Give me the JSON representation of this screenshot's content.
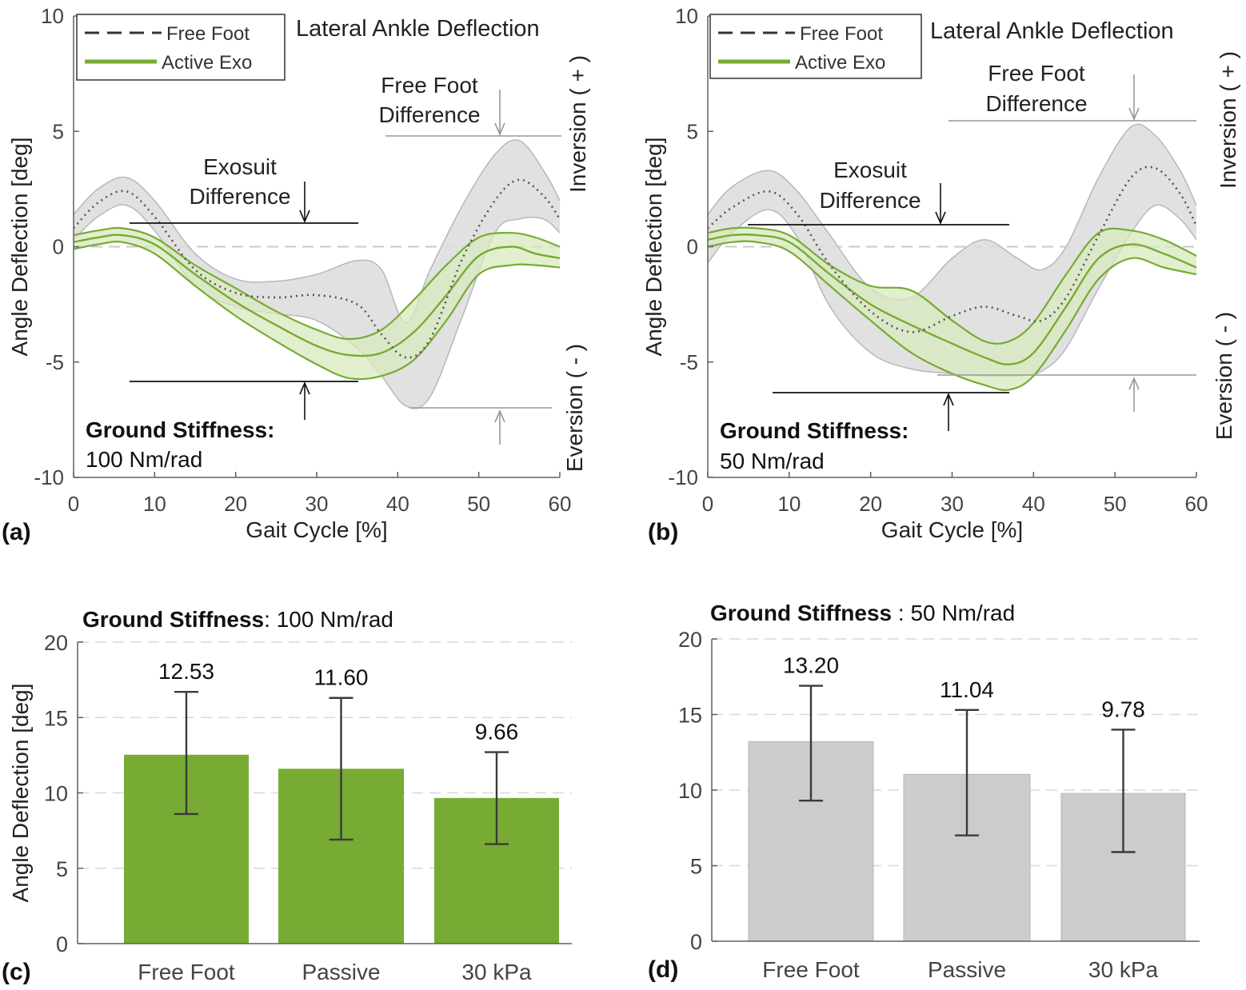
{
  "colors": {
    "exo": "#76ab34",
    "exo_band": "#d8e9bd",
    "free_band": "#dcdcdc",
    "free_band_edge": "#b8b8b8",
    "free_line": "#555555",
    "bar_green": "#77ab33",
    "bar_gray": "#cccccc",
    "axis": "#606060"
  },
  "chart_data": [
    {
      "panel_label": "(a)",
      "type": "line",
      "title": "Lateral Ankle Deflection",
      "xlabel": "Gait Cycle [%]",
      "ylabel": "Angle Deflection [deg]",
      "xlim": [
        0,
        60
      ],
      "ylim": [
        -10,
        10
      ],
      "xticks": [
        "0",
        "10",
        "20",
        "30",
        "40",
        "50",
        "60"
      ],
      "yticks": [
        "-10",
        "-5",
        "0",
        "5",
        "10"
      ],
      "legend": [
        "Free Foot",
        "Active Exo"
      ],
      "legend_position": "top-left",
      "annotations": {
        "exo_diff_l1": "Exosuit",
        "exo_diff_l2": "Difference",
        "free_diff_l1": "Free Foot",
        "free_diff_l2": "Difference",
        "inversion": "Inversion ( + )",
        "eversion": "Eversion ( - )",
        "stiffness_label": "Ground Stiffness:",
        "stiffness_value": "100 Nm/rad"
      },
      "series": [
        {
          "name": "Free Foot",
          "style": "dotted mean with gray band",
          "x": [
            0,
            3,
            6.5,
            10,
            15,
            20,
            25,
            30,
            35,
            38,
            41,
            44,
            48,
            52,
            55,
            58,
            60
          ],
          "mean": [
            0.8,
            1.9,
            2.4,
            1.3,
            -1.0,
            -2.0,
            -2.2,
            -2.1,
            -2.5,
            -3.8,
            -4.8,
            -4.0,
            -0.5,
            2.0,
            2.9,
            2.2,
            1.2
          ],
          "upper": [
            1.4,
            2.5,
            3.0,
            2.0,
            -0.3,
            -1.4,
            -1.5,
            -1.2,
            -0.6,
            -1.0,
            -3.3,
            -1.0,
            1.8,
            4.0,
            4.6,
            3.3,
            2.0
          ],
          "lower": [
            0.3,
            1.3,
            1.8,
            0.7,
            -1.7,
            -2.6,
            -2.9,
            -3.2,
            -4.4,
            -5.6,
            -6.9,
            -6.5,
            -3.0,
            0.6,
            1.2,
            1.2,
            0.6
          ]
        },
        {
          "name": "Active Exo",
          "style": "solid mean with green band",
          "x": [
            0,
            3,
            6,
            10,
            15,
            20,
            25,
            30,
            34,
            38,
            42,
            46,
            50,
            54,
            57,
            60
          ],
          "mean": [
            0.2,
            0.4,
            0.5,
            0.1,
            -1.2,
            -2.4,
            -3.4,
            -4.3,
            -4.7,
            -4.6,
            -3.7,
            -2.1,
            -0.4,
            0.0,
            -0.3,
            -0.5
          ],
          "upper": [
            0.5,
            0.7,
            0.8,
            0.4,
            -0.8,
            -1.8,
            -2.8,
            -3.6,
            -4.0,
            -3.6,
            -2.3,
            -0.8,
            0.4,
            0.6,
            0.4,
            0.0
          ],
          "lower": [
            -0.1,
            0.1,
            0.2,
            -0.3,
            -1.7,
            -3.0,
            -4.1,
            -5.1,
            -5.7,
            -5.6,
            -4.9,
            -3.2,
            -1.2,
            -0.8,
            -0.8,
            -0.9
          ]
        }
      ]
    },
    {
      "panel_label": "(b)",
      "type": "line",
      "title": "Lateral Ankle Deflection",
      "xlabel": "Gait Cycle [%]",
      "ylabel": "Angle Deflection [deg]",
      "xlim": [
        0,
        60
      ],
      "ylim": [
        -10,
        10
      ],
      "xticks": [
        "0",
        "10",
        "20",
        "30",
        "40",
        "50",
        "60"
      ],
      "yticks": [
        "-10",
        "-5",
        "0",
        "5",
        "10"
      ],
      "legend": [
        "Free Foot",
        "Active Exo"
      ],
      "legend_position": "top-left",
      "annotations": {
        "exo_diff_l1": "Exosuit",
        "exo_diff_l2": "Difference",
        "free_diff_l1": "Free Foot",
        "free_diff_l2": "Difference",
        "inversion": "Inversion ( + )",
        "eversion": "Eversion ( - )",
        "stiffness_label": "Ground Stiffness:",
        "stiffness_value": "50 Nm/rad"
      },
      "series": [
        {
          "name": "Free Foot",
          "style": "dotted mean with gray band",
          "x": [
            0,
            3,
            7.5,
            11,
            15,
            20,
            25,
            30,
            34,
            38,
            41,
            44,
            48,
            52,
            55,
            58,
            60
          ],
          "mean": [
            0.8,
            1.7,
            2.4,
            1.4,
            -0.8,
            -2.8,
            -3.7,
            -3.0,
            -2.6,
            -3.0,
            -3.2,
            -2.2,
            0.5,
            3.0,
            3.4,
            2.3,
            0.9
          ],
          "upper": [
            1.4,
            2.6,
            3.3,
            2.4,
            0.5,
            -1.8,
            -2.2,
            -0.5,
            0.3,
            -0.5,
            -1.0,
            0.0,
            3.0,
            5.2,
            4.8,
            3.3,
            1.8
          ],
          "lower": [
            -0.7,
            0.6,
            1.6,
            0.4,
            -2.6,
            -4.6,
            -5.3,
            -5.5,
            -5.6,
            -5.6,
            -5.4,
            -4.4,
            -1.8,
            0.6,
            1.8,
            1.2,
            0.3
          ]
        },
        {
          "name": "Active Exo",
          "style": "solid mean with green band",
          "x": [
            0,
            3,
            6,
            10,
            15,
            20,
            25,
            30,
            34,
            37,
            40,
            44,
            48,
            52,
            56,
            60
          ],
          "mean": [
            0.3,
            0.5,
            0.5,
            0.2,
            -1.2,
            -2.5,
            -3.4,
            -4.2,
            -4.8,
            -5.1,
            -4.6,
            -2.6,
            -0.5,
            0.1,
            -0.3,
            -0.9
          ],
          "upper": [
            0.6,
            0.8,
            0.8,
            0.5,
            -0.8,
            -1.7,
            -1.9,
            -3.2,
            -4.1,
            -4.1,
            -3.3,
            -1.2,
            0.6,
            0.7,
            0.3,
            -0.4
          ],
          "lower": [
            0.0,
            0.2,
            0.2,
            -0.2,
            -1.7,
            -3.2,
            -4.6,
            -5.5,
            -6.0,
            -6.2,
            -5.6,
            -3.6,
            -1.4,
            -0.5,
            -0.9,
            -1.2
          ]
        }
      ]
    },
    {
      "panel_label": "(c)",
      "type": "bar",
      "title_bold": "Ground Stiffness",
      "title_rest": ": 100 Nm/rad",
      "ylabel": "Angle Deflection [deg]",
      "ylim": [
        0,
        20
      ],
      "yticks": [
        "0",
        "5",
        "10",
        "15",
        "20"
      ],
      "categories": [
        "Free Foot",
        "Passive",
        "30 kPa"
      ],
      "values": [
        12.53,
        11.6,
        9.66
      ],
      "value_labels": [
        "12.53",
        "11.60",
        "9.66"
      ],
      "error_low": [
        8.6,
        6.9,
        6.6
      ],
      "error_high": [
        16.7,
        16.3,
        12.7
      ],
      "bar_color": "#77ab33",
      "grid": "horizontal dashed"
    },
    {
      "panel_label": "(d)",
      "type": "bar",
      "title_bold": "Ground Stiffness",
      "title_rest": " : 50 Nm/rad",
      "ylabel": "",
      "ylim": [
        0,
        20
      ],
      "yticks": [
        "0",
        "5",
        "10",
        "15",
        "20"
      ],
      "categories": [
        "Free Foot",
        "Passive",
        "30 kPa"
      ],
      "values": [
        13.2,
        11.04,
        9.78
      ],
      "value_labels": [
        "13.20",
        "11.04",
        "9.78"
      ],
      "error_low": [
        9.3,
        7.0,
        5.9
      ],
      "error_high": [
        16.9,
        15.3,
        14.0
      ],
      "bar_color": "#cccccc",
      "grid": "horizontal dashed"
    }
  ]
}
